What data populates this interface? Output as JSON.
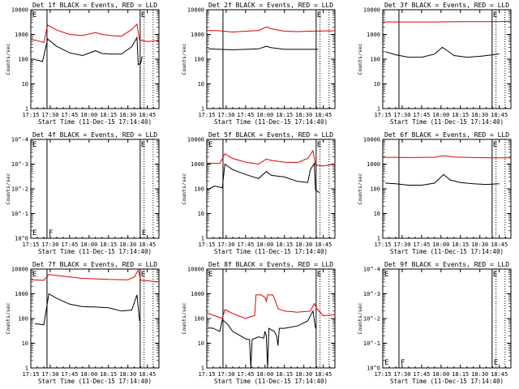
{
  "common": {
    "xlabel": "Start Time (11-Dec-15 17:14:40)",
    "ylabel": "Counts/sec",
    "xticks": [
      "17:15",
      "17:30",
      "17:45",
      "18:00",
      "18:15",
      "18:30",
      "18:45"
    ],
    "tick_minutes": [
      0,
      15,
      30,
      45,
      60,
      75,
      90
    ],
    "x_range_minutes": [
      0,
      99
    ],
    "y_range_log10": [
      0,
      4
    ],
    "y_tick_labels": [
      "1",
      "10",
      "100",
      "1000",
      "10000"
    ],
    "y_tick_labels_empty": [
      "10^0",
      "10^-1",
      "10^-2",
      "10^-3",
      "10^-4"
    ],
    "series_colors": {
      "events": "#000000",
      "lld": "#e00000"
    },
    "marker_lines_solid_minutes": [
      12.5,
      84.5
    ],
    "marker_lines_dotted_minutes": [
      87.5,
      94.5
    ]
  },
  "chart_data": [
    {
      "type": "line",
      "title": "Det 1f BLACK = Events, RED = LLD",
      "empty": false,
      "markers": {
        "left": "E",
        "right": "E"
      },
      "series": [
        {
          "name": "LLD",
          "points": [
            [
              0,
              620
            ],
            [
              4,
              580
            ],
            [
              10,
              470
            ],
            [
              13,
              2400
            ],
            [
              20,
              1500
            ],
            [
              30,
              1000
            ],
            [
              40,
              900
            ],
            [
              50,
              1200
            ],
            [
              55,
              1000
            ],
            [
              62,
              900
            ],
            [
              70,
              850
            ],
            [
              78,
              1600
            ],
            [
              82,
              2600
            ],
            [
              84,
              600
            ],
            [
              90,
              520
            ],
            [
              99,
              560
            ]
          ]
        },
        {
          "name": "Events",
          "points": [
            [
              3,
              95
            ],
            [
              5,
              92
            ],
            [
              9,
              80
            ],
            [
              13,
              650
            ],
            [
              20,
              330
            ],
            [
              30,
              180
            ],
            [
              40,
              140
            ],
            [
              50,
              220
            ],
            [
              55,
              170
            ],
            [
              62,
              160
            ],
            [
              70,
              160
            ],
            [
              78,
              320
            ],
            [
              82,
              750
            ],
            [
              83,
              60
            ],
            [
              85,
              70
            ],
            [
              86,
              130
            ]
          ]
        }
      ]
    },
    {
      "type": "line",
      "title": "Det 2f BLACK = Events, RED = LLD",
      "empty": false,
      "markers": {
        "left": "",
        "right": "E"
      },
      "series": [
        {
          "name": "LLD",
          "points": [
            [
              0,
              1450
            ],
            [
              10,
              1400
            ],
            [
              20,
              1250
            ],
            [
              30,
              1350
            ],
            [
              40,
              1450
            ],
            [
              46,
              2000
            ],
            [
              50,
              1700
            ],
            [
              60,
              1350
            ],
            [
              70,
              1300
            ],
            [
              80,
              1350
            ],
            [
              90,
              1380
            ],
            [
              99,
              1400
            ]
          ]
        },
        {
          "name": "Events",
          "points": [
            [
              1,
              260
            ],
            [
              10,
              250
            ],
            [
              20,
              240
            ],
            [
              30,
              250
            ],
            [
              40,
              260
            ],
            [
              46,
              330
            ],
            [
              50,
              290
            ],
            [
              60,
              250
            ],
            [
              70,
              250
            ],
            [
              80,
              250
            ],
            [
              86,
              250
            ]
          ]
        }
      ]
    },
    {
      "type": "line",
      "title": "Det 3f BLACK = Events, RED = LLD",
      "empty": false,
      "markers": {
        "left": "",
        "right": "E"
      },
      "series": [
        {
          "name": "LLD",
          "points": [
            [
              0,
              3200
            ],
            [
              20,
              3200
            ],
            [
              40,
              3200
            ],
            [
              60,
              3300
            ],
            [
              80,
              3300
            ],
            [
              99,
              3350
            ]
          ]
        },
        {
          "name": "Events",
          "points": [
            [
              2,
              200
            ],
            [
              10,
              150
            ],
            [
              20,
              120
            ],
            [
              30,
              120
            ],
            [
              40,
              160
            ],
            [
              46,
              300
            ],
            [
              50,
              220
            ],
            [
              55,
              140
            ],
            [
              65,
              120
            ],
            [
              75,
              130
            ],
            [
              85,
              150
            ],
            [
              90,
              165
            ]
          ]
        }
      ]
    },
    {
      "type": "line",
      "title": "Det 4f BLACK = Events, RED = LLD",
      "empty": true,
      "markers": {
        "left": "E",
        "left2": "F",
        "right": "E"
      },
      "series": []
    },
    {
      "type": "line",
      "title": "Det 5f BLACK = Events, RED = LLD",
      "empty": false,
      "markers": {
        "left": "E",
        "right": "E"
      },
      "series": [
        {
          "name": "LLD",
          "points": [
            [
              0,
              1100
            ],
            [
              10,
              1050
            ],
            [
              14,
              2600
            ],
            [
              20,
              1700
            ],
            [
              30,
              1200
            ],
            [
              40,
              1000
            ],
            [
              46,
              1600
            ],
            [
              50,
              1400
            ],
            [
              60,
              1200
            ],
            [
              70,
              1150
            ],
            [
              78,
              1700
            ],
            [
              82,
              3500
            ],
            [
              84,
              900
            ],
            [
              90,
              850
            ],
            [
              99,
              1000
            ]
          ]
        },
        {
          "name": "Events",
          "points": [
            [
              0,
              90
            ],
            [
              6,
              130
            ],
            [
              12,
              110
            ],
            [
              14,
              1000
            ],
            [
              20,
              600
            ],
            [
              30,
              380
            ],
            [
              40,
              260
            ],
            [
              46,
              500
            ],
            [
              50,
              350
            ],
            [
              60,
              300
            ],
            [
              70,
              200
            ],
            [
              78,
              180
            ],
            [
              80,
              600
            ],
            [
              83,
              1050
            ],
            [
              84,
              90
            ],
            [
              87,
              70
            ]
          ]
        }
      ]
    },
    {
      "type": "line",
      "title": "Det 6f BLACK = Events, RED = LLD",
      "empty": false,
      "markers": {
        "left": "",
        "right": "E"
      },
      "series": [
        {
          "name": "LLD",
          "points": [
            [
              0,
              1900
            ],
            [
              20,
              1850
            ],
            [
              40,
              1900
            ],
            [
              47,
              2200
            ],
            [
              55,
              1950
            ],
            [
              70,
              1850
            ],
            [
              85,
              1800
            ],
            [
              99,
              1800
            ]
          ]
        },
        {
          "name": "Events",
          "points": [
            [
              2,
              170
            ],
            [
              10,
              160
            ],
            [
              20,
              140
            ],
            [
              30,
              140
            ],
            [
              40,
              170
            ],
            [
              47,
              380
            ],
            [
              52,
              230
            ],
            [
              60,
              180
            ],
            [
              70,
              160
            ],
            [
              80,
              150
            ],
            [
              90,
              160
            ]
          ]
        }
      ]
    },
    {
      "type": "line",
      "title": "Det 7f BLACK = Events, RED = LLD",
      "empty": false,
      "markers": {
        "left": "E",
        "right": "E"
      },
      "series": [
        {
          "name": "LLD",
          "points": [
            [
              0,
              3700
            ],
            [
              10,
              3500
            ],
            [
              14,
              6000
            ],
            [
              20,
              5500
            ],
            [
              30,
              4800
            ],
            [
              40,
              4200
            ],
            [
              50,
              4000
            ],
            [
              60,
              3800
            ],
            [
              75,
              3700
            ],
            [
              80,
              4800
            ],
            [
              83,
              9000
            ],
            [
              85,
              3500
            ],
            [
              92,
              3300
            ],
            [
              99,
              3000
            ]
          ]
        },
        {
          "name": "Events",
          "points": [
            [
              3,
              60
            ],
            [
              5,
              60
            ],
            [
              10,
              55
            ],
            [
              14,
              1000
            ],
            [
              20,
              650
            ],
            [
              30,
              380
            ],
            [
              40,
              300
            ],
            [
              50,
              290
            ],
            [
              60,
              270
            ],
            [
              70,
              200
            ],
            [
              78,
              220
            ],
            [
              82,
              900
            ],
            [
              84,
              80
            ]
          ]
        }
      ]
    },
    {
      "type": "line",
      "title": "Det 8f BLACK = Events, RED = LLD",
      "empty": false,
      "markers": {
        "left": "E",
        "right": "E"
      },
      "series": [
        {
          "name": "LLD",
          "points": [
            [
              0,
              170
            ],
            [
              8,
              120
            ],
            [
              12,
              100
            ],
            [
              14,
              230
            ],
            [
              20,
              160
            ],
            [
              26,
              120
            ],
            [
              30,
              100
            ],
            [
              34,
              120
            ],
            [
              37,
              130
            ],
            [
              38,
              900
            ],
            [
              40,
              900
            ],
            [
              42,
              900
            ],
            [
              45,
              700
            ],
            [
              46,
              500
            ],
            [
              47,
              900
            ],
            [
              51,
              900
            ],
            [
              52,
              700
            ],
            [
              55,
              250
            ],
            [
              60,
              200
            ],
            [
              70,
              180
            ],
            [
              80,
              200
            ],
            [
              83,
              400
            ],
            [
              85,
              250
            ],
            [
              90,
              130
            ],
            [
              99,
              140
            ]
          ]
        },
        {
          "name": "Events",
          "points": [
            [
              1,
              42
            ],
            [
              5,
              40
            ],
            [
              10,
              30
            ],
            [
              12,
              90
            ],
            [
              16,
              60
            ],
            [
              20,
              30
            ],
            [
              26,
              20
            ],
            [
              30,
              15
            ],
            [
              33,
              14
            ],
            [
              34,
              0.5
            ],
            [
              35,
              14
            ],
            [
              40,
              18
            ],
            [
              44,
              16
            ],
            [
              45,
              30
            ],
            [
              46,
              20
            ],
            [
              47,
              0.5
            ],
            [
              48,
              40
            ],
            [
              52,
              30
            ],
            [
              54,
              20
            ],
            [
              55,
              8
            ],
            [
              56,
              40
            ],
            [
              60,
              40
            ],
            [
              70,
              50
            ],
            [
              78,
              80
            ],
            [
              82,
              200
            ],
            [
              84,
              40
            ]
          ]
        }
      ]
    },
    {
      "type": "line",
      "title": "Det 9f BLACK = Events, RED = LLD",
      "empty": true,
      "markers": {
        "left": "E",
        "left2": "F",
        "right": "E"
      },
      "series": []
    }
  ]
}
